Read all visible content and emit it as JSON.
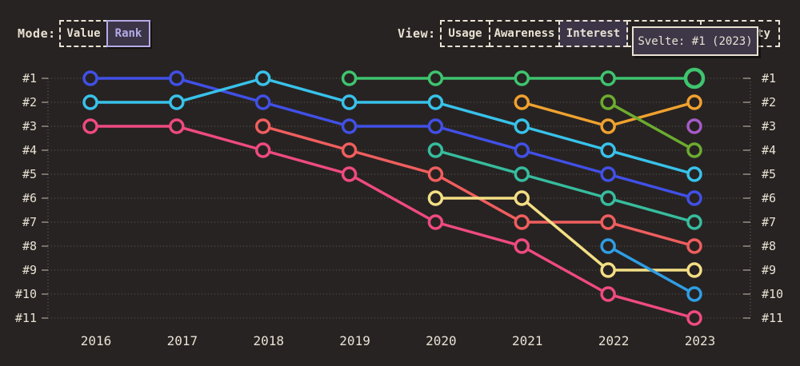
{
  "theme": {
    "background": "#272322",
    "text": "#e9e1d3",
    "selected_accent": "#b5aae8",
    "selected_fill": "#3b3547"
  },
  "header": {
    "mode": {
      "label": "Mode:",
      "buttons": [
        {
          "label": "Value",
          "selected": false
        },
        {
          "label": "Rank",
          "selected": true
        }
      ]
    },
    "view": {
      "label": "View:",
      "buttons": [
        {
          "label": "Usage",
          "selected": false
        },
        {
          "label": "Awareness",
          "selected": false
        },
        {
          "label": "Interest",
          "selected": true
        },
        {
          "label": "",
          "selected": false
        },
        {
          "label": "ty",
          "selected": false
        }
      ]
    }
  },
  "tooltip": {
    "text": "Svelte: #1 (2023)"
  },
  "chart_data": {
    "type": "line",
    "subtype": "bump-rank",
    "title": "",
    "xlabel": "",
    "ylabel": "",
    "x": [
      "2016",
      "2017",
      "2018",
      "2019",
      "2020",
      "2021",
      "2022",
      "2023"
    ],
    "y_ticks": [
      "#1",
      "#2",
      "#3",
      "#4",
      "#5",
      "#6",
      "#7",
      "#8",
      "#9",
      "#10",
      "#11"
    ],
    "ylim": [
      1,
      11
    ],
    "y_inverted": true,
    "grid": true,
    "legend": "none",
    "marker": "open-circle",
    "series": [
      {
        "name": "indigo",
        "color": "#4150e6",
        "ranks": [
          1,
          1,
          2,
          3,
          3,
          4,
          5,
          6
        ]
      },
      {
        "name": "cyan",
        "color": "#38c2ea",
        "ranks": [
          2,
          2,
          1,
          2,
          2,
          3,
          4,
          5
        ]
      },
      {
        "name": "pink",
        "color": "#ef4a81",
        "ranks": [
          3,
          3,
          4,
          5,
          7,
          8,
          10,
          11
        ]
      },
      {
        "name": "salmon",
        "color": "#f05e5e",
        "ranks": [
          null,
          null,
          3,
          4,
          5,
          7,
          7,
          8
        ]
      },
      {
        "name": "green-svelte",
        "color": "#3fc46f",
        "ranks": [
          null,
          null,
          null,
          1,
          1,
          1,
          1,
          1
        ],
        "highlight_last": true
      },
      {
        "name": "teal",
        "color": "#36bd9e",
        "ranks": [
          null,
          null,
          null,
          null,
          4,
          5,
          6,
          7
        ]
      },
      {
        "name": "yellow",
        "color": "#f3df85",
        "ranks": [
          null,
          null,
          null,
          null,
          6,
          6,
          9,
          9
        ]
      },
      {
        "name": "orange",
        "color": "#f0a12f",
        "ranks": [
          null,
          null,
          null,
          null,
          null,
          2,
          3,
          2
        ]
      },
      {
        "name": "olive",
        "color": "#6cac30",
        "ranks": [
          null,
          null,
          null,
          null,
          null,
          null,
          2,
          4
        ]
      },
      {
        "name": "sky-blue",
        "color": "#2f9ee4",
        "ranks": [
          null,
          null,
          null,
          null,
          null,
          null,
          8,
          10
        ]
      },
      {
        "name": "purple",
        "color": "#a55bc8",
        "ranks": [
          null,
          null,
          null,
          null,
          null,
          null,
          null,
          3
        ]
      }
    ]
  }
}
